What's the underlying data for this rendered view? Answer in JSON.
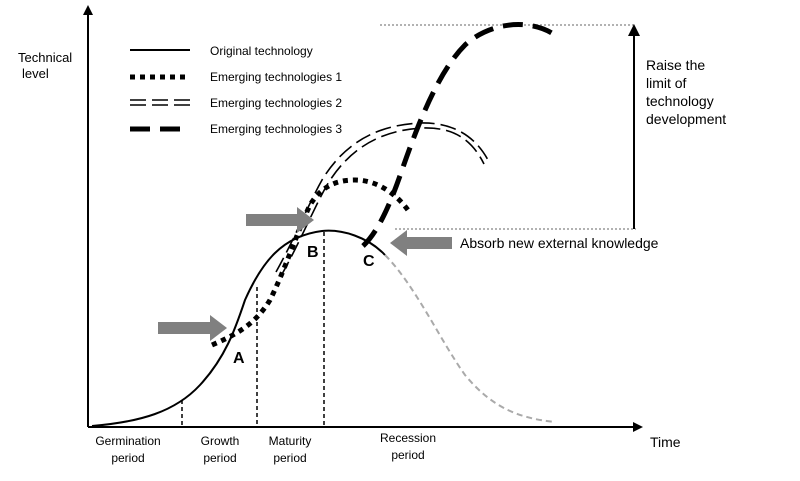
{
  "axes": {
    "y_label_line1": "Technical",
    "y_label_line2": "level",
    "x_label": "Time"
  },
  "legend": [
    {
      "label": "Original technology",
      "style": "solid"
    },
    {
      "label": "Emerging technologies 1",
      "style": "dotted"
    },
    {
      "label": "Emerging technologies 2",
      "style": "double"
    },
    {
      "label": "Emerging technologies 3",
      "style": "dashed"
    }
  ],
  "phases": [
    {
      "line1": "Germination",
      "line2": "period"
    },
    {
      "line1": "Growth",
      "line2": "period"
    },
    {
      "line1": "Maturity",
      "line2": "period"
    },
    {
      "line1": "Recession",
      "line2": "period"
    }
  ],
  "points": {
    "a": "A",
    "b": "B",
    "c": "C"
  },
  "annotations": {
    "raise_line1": "Raise the",
    "raise_line2": "limit of",
    "raise_line3": "technology",
    "raise_line4": "development",
    "absorb": "Absorb new external knowledge"
  },
  "colors": {
    "line": "#000000",
    "arrow_fill": "#808080",
    "recession": "#aaaaaa",
    "guide": "#999999"
  }
}
